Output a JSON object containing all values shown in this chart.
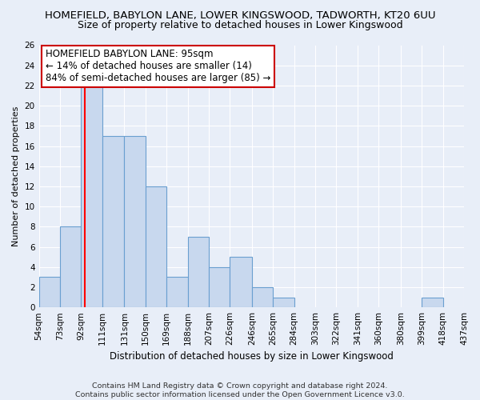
{
  "title": "HOMEFIELD, BABYLON LANE, LOWER KINGSWOOD, TADWORTH, KT20 6UU",
  "subtitle": "Size of property relative to detached houses in Lower Kingswood",
  "xlabel": "Distribution of detached houses by size in Lower Kingswood",
  "ylabel": "Number of detached properties",
  "footer1": "Contains HM Land Registry data © Crown copyright and database right 2024.",
  "footer2": "Contains public sector information licensed under the Open Government Licence v3.0.",
  "bin_edges": [
    54,
    73,
    92,
    111,
    131,
    150,
    169,
    188,
    207,
    226,
    246,
    265,
    284,
    303,
    322,
    341,
    360,
    380,
    399,
    418,
    437
  ],
  "bin_labels": [
    "54sqm",
    "73sqm",
    "92sqm",
    "111sqm",
    "131sqm",
    "150sqm",
    "169sqm",
    "188sqm",
    "207sqm",
    "226sqm",
    "246sqm",
    "265sqm",
    "284sqm",
    "303sqm",
    "322sqm",
    "341sqm",
    "360sqm",
    "380sqm",
    "399sqm",
    "418sqm",
    "437sqm"
  ],
  "bar_heights": [
    3,
    8,
    22,
    17,
    17,
    12,
    3,
    7,
    4,
    5,
    2,
    1,
    0,
    0,
    0,
    0,
    0,
    0,
    1,
    0
  ],
  "bar_color": "#c8d8ee",
  "bar_edge_color": "#6a9fd0",
  "red_line_x": 95,
  "ylim": [
    0,
    26
  ],
  "yticks": [
    0,
    2,
    4,
    6,
    8,
    10,
    12,
    14,
    16,
    18,
    20,
    22,
    24,
    26
  ],
  "annotation_title": "HOMEFIELD BABYLON LANE: 95sqm",
  "annotation_line1": "← 14% of detached houses are smaller (14)",
  "annotation_line2": "84% of semi-detached houses are larger (85) →",
  "annotation_box_color": "#ffffff",
  "annotation_box_edge": "#cc0000",
  "background_color": "#e8eef8",
  "grid_color": "#ffffff",
  "title_fontsize": 9.5,
  "subtitle_fontsize": 9,
  "annotation_fontsize": 8.5,
  "ylabel_fontsize": 8,
  "xlabel_fontsize": 8.5,
  "tick_fontsize": 7.5,
  "footer_fontsize": 6.8
}
